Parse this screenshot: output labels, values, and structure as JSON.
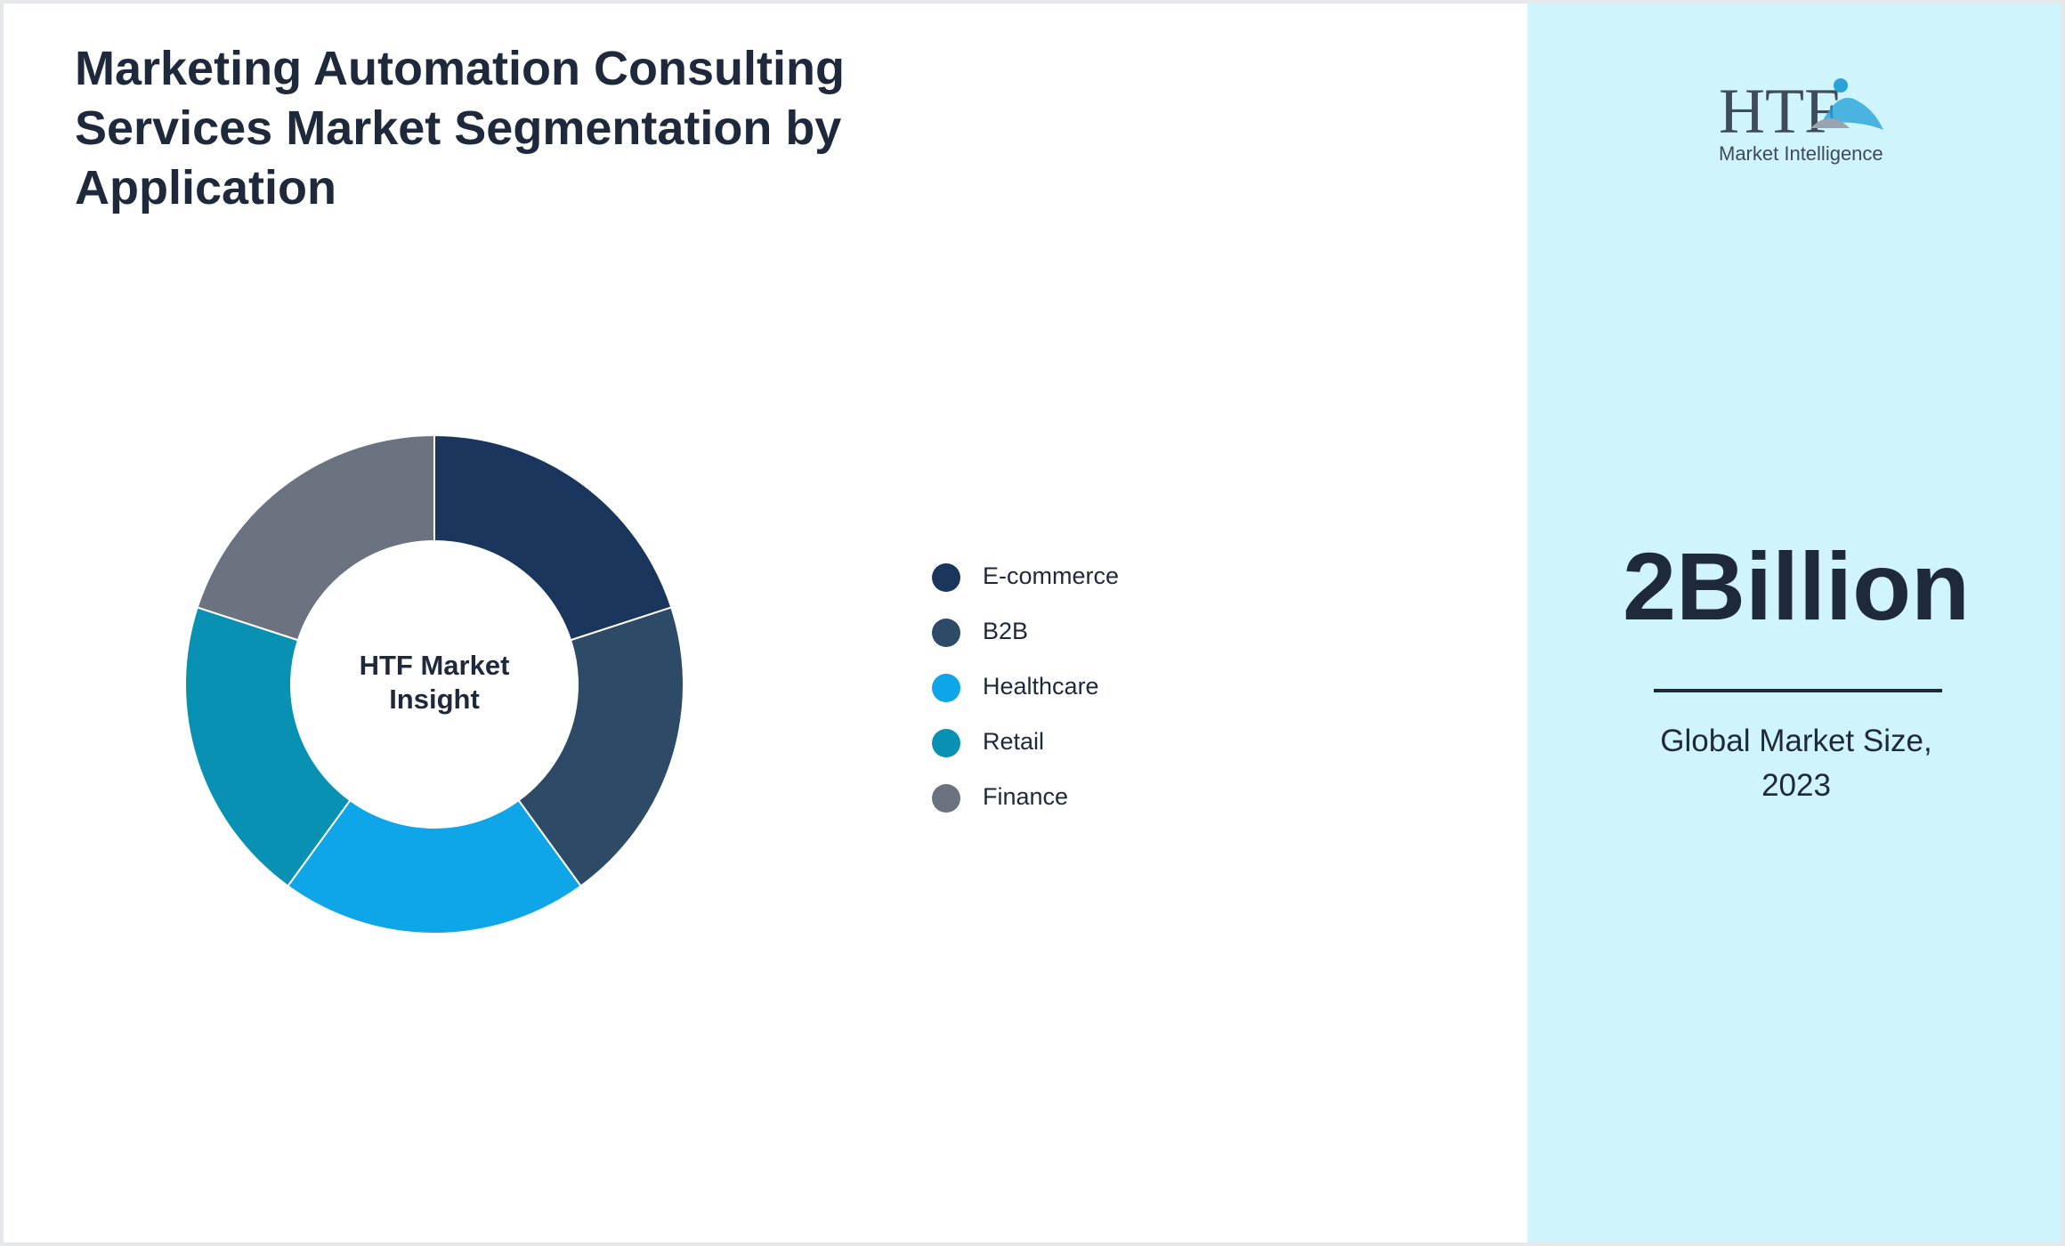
{
  "chart_data": {
    "type": "donut",
    "title": "Marketing Automation Consulting Services Market Segmentation by Application",
    "center_label": "HTF Market Insight",
    "categories": [
      "E-commerce",
      "B2B",
      "Healthcare",
      "Retail",
      "Finance"
    ],
    "values": [
      20,
      20,
      20,
      20,
      20
    ],
    "colors": [
      "#1b365d",
      "#2d4a67",
      "#0ea5e9",
      "#0891b2",
      "#6b7280"
    ],
    "legend": "right"
  },
  "logo": {
    "mark": "HTF",
    "tagline": "Market Intelligence"
  },
  "highlight": {
    "value": "2Billion",
    "caption": "Global Market Size, 2023"
  }
}
